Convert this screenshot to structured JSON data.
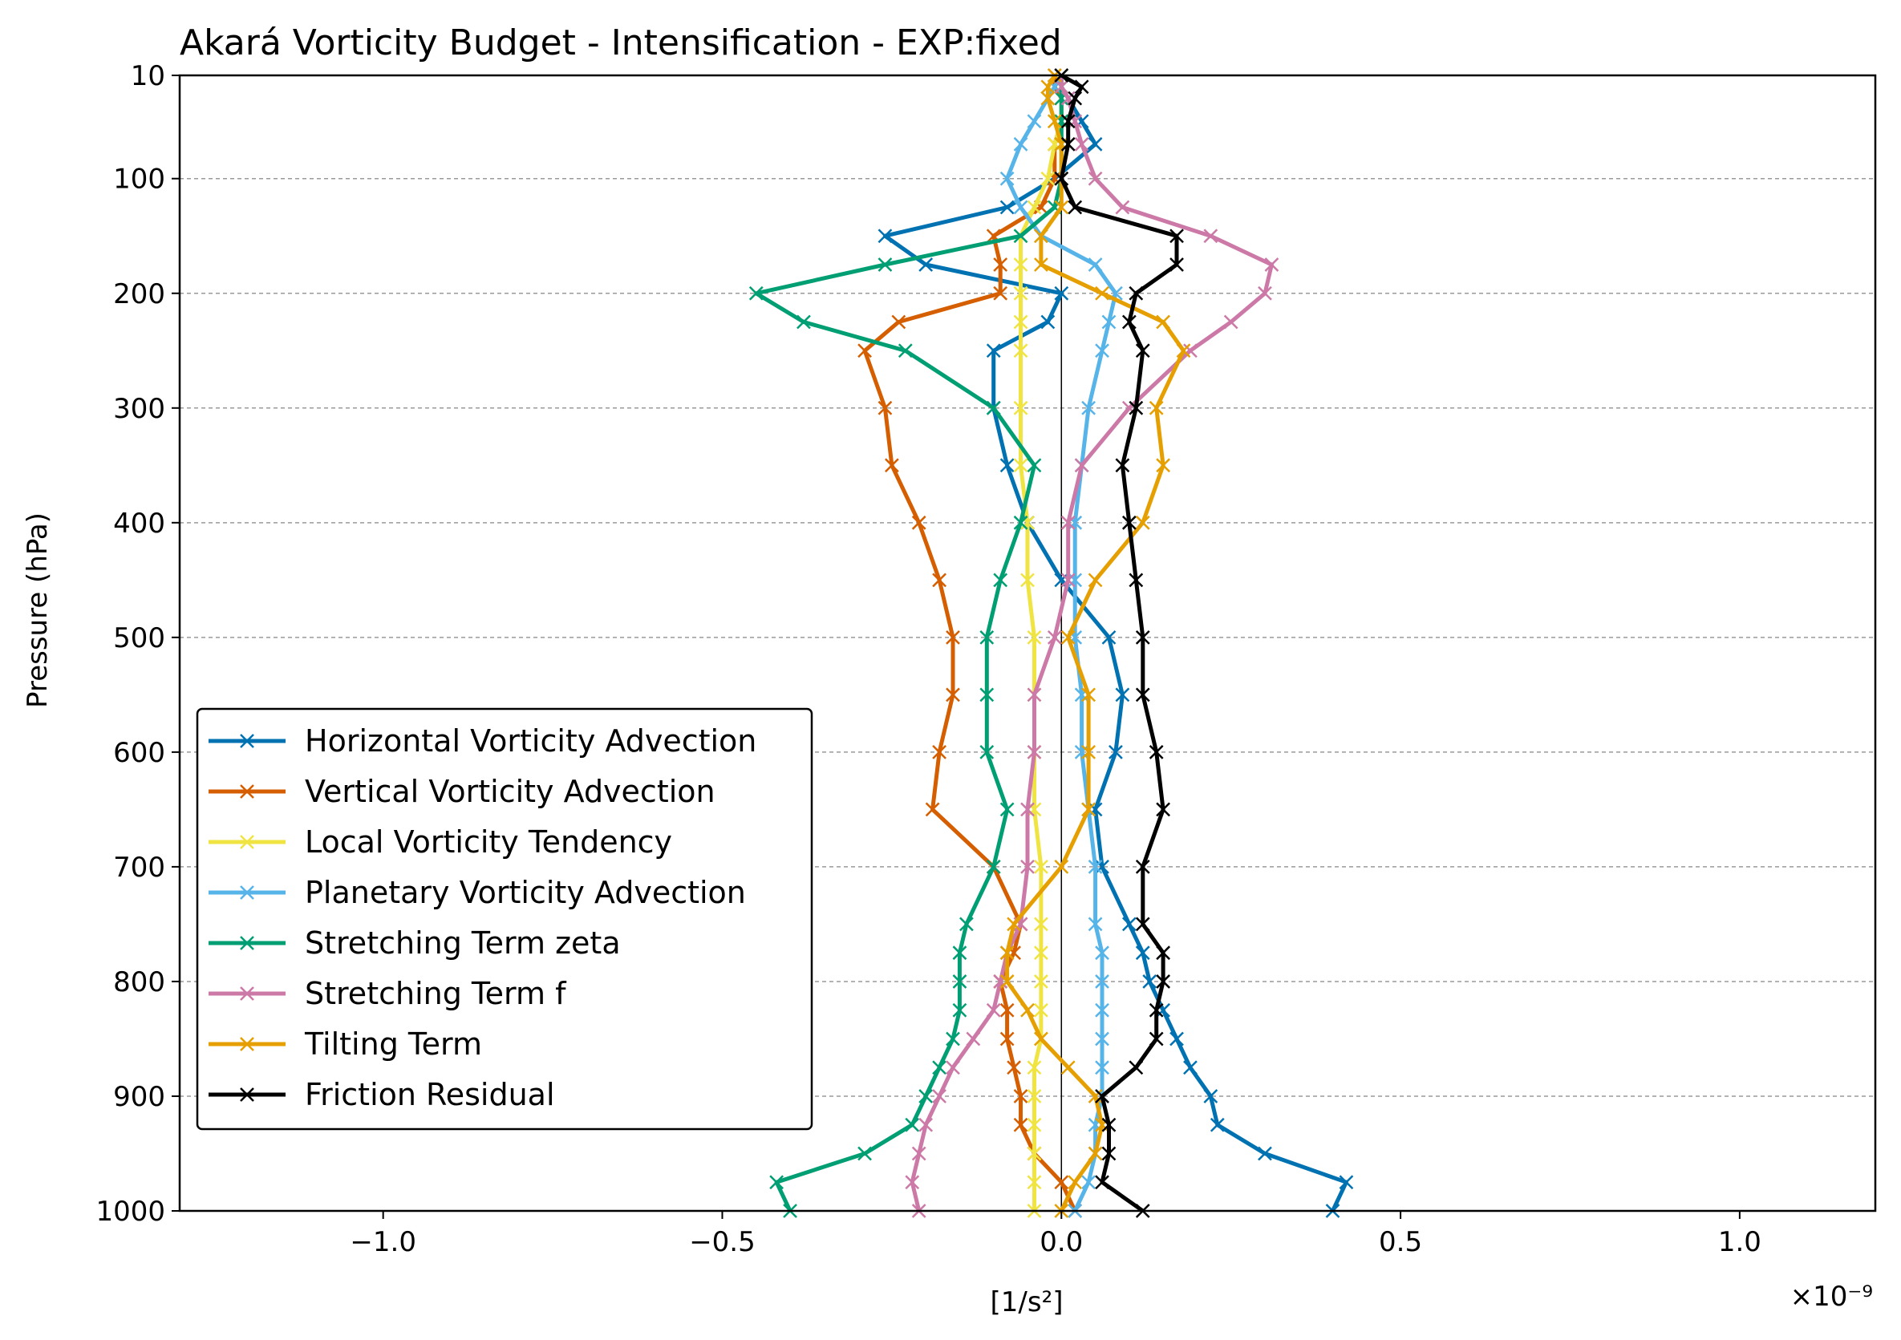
{
  "chart_data": {
    "type": "line",
    "title": "Akará Vorticity Budget - Intensification - EXP:fixed",
    "xlabel": "[1/s²]",
    "ylabel": "Pressure (hPa)",
    "x_offset_label": "×10⁻⁹",
    "xlim": [
      -1.3,
      1.2
    ],
    "ylim": [
      1000,
      10
    ],
    "x_ticks": [
      -1.0,
      -0.5,
      0.0,
      0.5,
      1.0
    ],
    "x_tick_labels": [
      "−1.0",
      "−0.5",
      "0.0",
      "0.5",
      "1.0"
    ],
    "y_ticks": [
      10,
      100,
      200,
      300,
      400,
      500,
      600,
      700,
      800,
      900,
      1000
    ],
    "y_tick_labels": [
      "10",
      "100",
      "200",
      "300",
      "400",
      "500",
      "600",
      "700",
      "800",
      "900",
      "1000"
    ],
    "grid": "horizontal dashed",
    "legend_position": "lower-left",
    "zero_line": true,
    "levels": [
      1000,
      975,
      950,
      925,
      900,
      875,
      850,
      825,
      800,
      775,
      750,
      700,
      650,
      600,
      550,
      500,
      450,
      400,
      350,
      300,
      250,
      225,
      200,
      175,
      150,
      125,
      100,
      70,
      50,
      30,
      20,
      10
    ],
    "series": [
      {
        "name": "Horizontal Vorticity Advection",
        "color": "#0072B2",
        "values": [
          0.4,
          0.42,
          0.3,
          0.23,
          0.22,
          0.19,
          0.17,
          0.15,
          0.13,
          0.12,
          0.1,
          0.06,
          0.05,
          0.08,
          0.09,
          0.07,
          0.0,
          -0.05,
          -0.08,
          -0.1,
          -0.1,
          -0.02,
          0.0,
          -0.2,
          -0.26,
          -0.08,
          -0.01,
          0.05,
          0.03,
          0.01,
          0.0,
          0.0
        ]
      },
      {
        "name": "Vertical Vorticity Advection",
        "color": "#D55E00",
        "values": [
          0.02,
          0.0,
          -0.04,
          -0.06,
          -0.06,
          -0.07,
          -0.08,
          -0.08,
          -0.09,
          -0.07,
          -0.06,
          -0.1,
          -0.19,
          -0.18,
          -0.16,
          -0.16,
          -0.18,
          -0.21,
          -0.25,
          -0.26,
          -0.29,
          -0.24,
          -0.09,
          -0.09,
          -0.1,
          -0.03,
          -0.01,
          -0.01,
          0.0,
          0.0,
          -0.01,
          -0.01
        ]
      },
      {
        "name": "Local Vorticity Tendency",
        "color": "#F0E442",
        "values": [
          -0.04,
          -0.04,
          -0.04,
          -0.04,
          -0.04,
          -0.04,
          -0.03,
          -0.03,
          -0.03,
          -0.03,
          -0.03,
          -0.03,
          -0.04,
          -0.04,
          -0.04,
          -0.04,
          -0.05,
          -0.05,
          -0.06,
          -0.06,
          -0.06,
          -0.06,
          -0.06,
          -0.06,
          -0.06,
          -0.04,
          -0.02,
          -0.01,
          0.0,
          0.0,
          0.0,
          0.0
        ]
      },
      {
        "name": "Planetary Vorticity Advection",
        "color": "#56B4E9",
        "values": [
          0.02,
          0.04,
          0.05,
          0.05,
          0.06,
          0.06,
          0.06,
          0.06,
          0.06,
          0.06,
          0.05,
          0.05,
          0.04,
          0.03,
          0.03,
          0.02,
          0.02,
          0.02,
          0.03,
          0.04,
          0.06,
          0.07,
          0.08,
          0.05,
          -0.03,
          -0.06,
          -0.08,
          -0.06,
          -0.04,
          -0.02,
          -0.01,
          0.0
        ]
      },
      {
        "name": "Stretching Term zeta",
        "color": "#009E73",
        "values": [
          -0.4,
          -0.42,
          -0.29,
          -0.22,
          -0.2,
          -0.18,
          -0.16,
          -0.15,
          -0.15,
          -0.15,
          -0.14,
          -0.1,
          -0.08,
          -0.11,
          -0.11,
          -0.11,
          -0.09,
          -0.06,
          -0.04,
          -0.1,
          -0.23,
          -0.38,
          -0.45,
          -0.26,
          -0.06,
          -0.01,
          0.0,
          0.0,
          0.0,
          0.0,
          0.0,
          0.0
        ]
      },
      {
        "name": "Stretching Term f",
        "color": "#CC79A7",
        "values": [
          -0.21,
          -0.22,
          -0.21,
          -0.2,
          -0.18,
          -0.16,
          -0.13,
          -0.1,
          -0.09,
          -0.08,
          -0.06,
          -0.05,
          -0.05,
          -0.04,
          -0.04,
          -0.01,
          0.01,
          0.01,
          0.03,
          0.1,
          0.19,
          0.25,
          0.3,
          0.31,
          0.22,
          0.09,
          0.05,
          0.03,
          0.02,
          0.01,
          0.0,
          0.0
        ]
      },
      {
        "name": "Tilting Term",
        "color": "#E69F00",
        "values": [
          0.0,
          0.02,
          0.05,
          0.06,
          0.05,
          0.01,
          -0.03,
          -0.05,
          -0.08,
          -0.08,
          -0.07,
          0.0,
          0.04,
          0.04,
          0.04,
          0.01,
          0.05,
          0.12,
          0.15,
          0.14,
          0.18,
          0.15,
          0.06,
          -0.03,
          -0.03,
          0.0,
          0.0,
          0.0,
          -0.01,
          -0.02,
          -0.02,
          -0.01
        ]
      },
      {
        "name": "Friction Residual",
        "color": "#000000",
        "values": [
          0.12,
          0.06,
          0.07,
          0.07,
          0.06,
          0.11,
          0.14,
          0.14,
          0.15,
          0.15,
          0.12,
          0.12,
          0.15,
          0.14,
          0.12,
          0.12,
          0.11,
          0.1,
          0.09,
          0.11,
          0.12,
          0.1,
          0.11,
          0.17,
          0.17,
          0.02,
          0.0,
          0.01,
          0.01,
          0.02,
          0.03,
          0.0
        ]
      }
    ]
  }
}
